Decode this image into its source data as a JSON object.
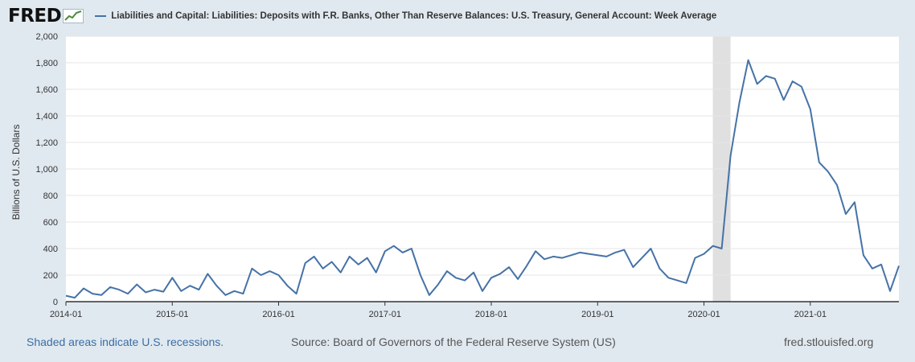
{
  "header": {
    "logo": "FRED",
    "logo_icon": "line-chart-icon",
    "series_title": "Liabilities and Capital: Liabilities: Deposits with F.R. Banks, Other Than Reserve Balances: U.S. Treasury, General Account: Week Average"
  },
  "footer": {
    "recession_note": "Shaded areas indicate U.S. recessions.",
    "source": "Source: Board of Governors of the Federal Reserve System (US)",
    "site": "fred.stlouisfed.org"
  },
  "colors": {
    "line": "#4572a7",
    "background": "#e1e9f0",
    "plot": "#ffffff",
    "recession": "#e0e0e0",
    "grid": "#e6e6e6"
  },
  "chart_data": {
    "type": "line",
    "title": "Liabilities and Capital: Liabilities: Deposits with F.R. Banks, Other Than Reserve Balances: U.S. Treasury, General Account: Week Average",
    "xlabel": "",
    "ylabel": "Billions of U.S. Dollars",
    "ylim": [
      0,
      2000
    ],
    "xlim": [
      "2014-01",
      "2021-11"
    ],
    "yticks": [
      0,
      200,
      400,
      600,
      800,
      1000,
      1200,
      1400,
      1600,
      1800,
      2000
    ],
    "ytick_labels": [
      "0",
      "200",
      "400",
      "600",
      "800",
      "1,000",
      "1,200",
      "1,400",
      "1,600",
      "1,800",
      "2,000"
    ],
    "xticks": [
      "2014-01",
      "2015-01",
      "2016-01",
      "2017-01",
      "2018-01",
      "2019-01",
      "2020-01",
      "2021-01"
    ],
    "grid": true,
    "recessions": [
      {
        "start": "2020-02",
        "end": "2020-04"
      }
    ],
    "series": [
      {
        "x": [
          "2014-01",
          "2014-02",
          "2014-03",
          "2014-04",
          "2014-05",
          "2014-06",
          "2014-07",
          "2014-08",
          "2014-09",
          "2014-10",
          "2014-11",
          "2014-12",
          "2015-01",
          "2015-02",
          "2015-03",
          "2015-04",
          "2015-05",
          "2015-06",
          "2015-07",
          "2015-08",
          "2015-09",
          "2015-10",
          "2015-11",
          "2015-12",
          "2016-01",
          "2016-02",
          "2016-03",
          "2016-04",
          "2016-05",
          "2016-06",
          "2016-07",
          "2016-08",
          "2016-09",
          "2016-10",
          "2016-11",
          "2016-12",
          "2017-01",
          "2017-02",
          "2017-03",
          "2017-04",
          "2017-05",
          "2017-06",
          "2017-07",
          "2017-08",
          "2017-09",
          "2017-10",
          "2017-11",
          "2017-12",
          "2018-01",
          "2018-02",
          "2018-03",
          "2018-04",
          "2018-05",
          "2018-06",
          "2018-07",
          "2018-08",
          "2018-09",
          "2018-10",
          "2018-11",
          "2018-12",
          "2019-01",
          "2019-02",
          "2019-03",
          "2019-04",
          "2019-05",
          "2019-06",
          "2019-07",
          "2019-08",
          "2019-09",
          "2019-10",
          "2019-11",
          "2019-12",
          "2020-01",
          "2020-02",
          "2020-03",
          "2020-04",
          "2020-05",
          "2020-06",
          "2020-07",
          "2020-08",
          "2020-09",
          "2020-10",
          "2020-11",
          "2020-12",
          "2021-01",
          "2021-02",
          "2021-03",
          "2021-04",
          "2021-05",
          "2021-06",
          "2021-07",
          "2021-08",
          "2021-09",
          "2021-10",
          "2021-11"
        ],
        "values": [
          45,
          30,
          100,
          60,
          50,
          110,
          90,
          60,
          130,
          70,
          90,
          75,
          180,
          80,
          120,
          90,
          210,
          120,
          50,
          80,
          60,
          250,
          200,
          230,
          200,
          120,
          60,
          290,
          340,
          250,
          300,
          220,
          340,
          280,
          330,
          220,
          380,
          420,
          370,
          400,
          200,
          50,
          130,
          230,
          180,
          160,
          220,
          80,
          180,
          210,
          260,
          170,
          270,
          380,
          320,
          340,
          330,
          350,
          370,
          360,
          350,
          340,
          370,
          390,
          260,
          330,
          400,
          250,
          180,
          160,
          140,
          330,
          360,
          420,
          400,
          1100,
          1500,
          1820,
          1640,
          1700,
          1680,
          1520,
          1660,
          1620,
          1450,
          1050,
          980,
          880,
          660,
          750,
          350,
          250,
          280,
          80,
          270
        ]
      }
    ]
  }
}
